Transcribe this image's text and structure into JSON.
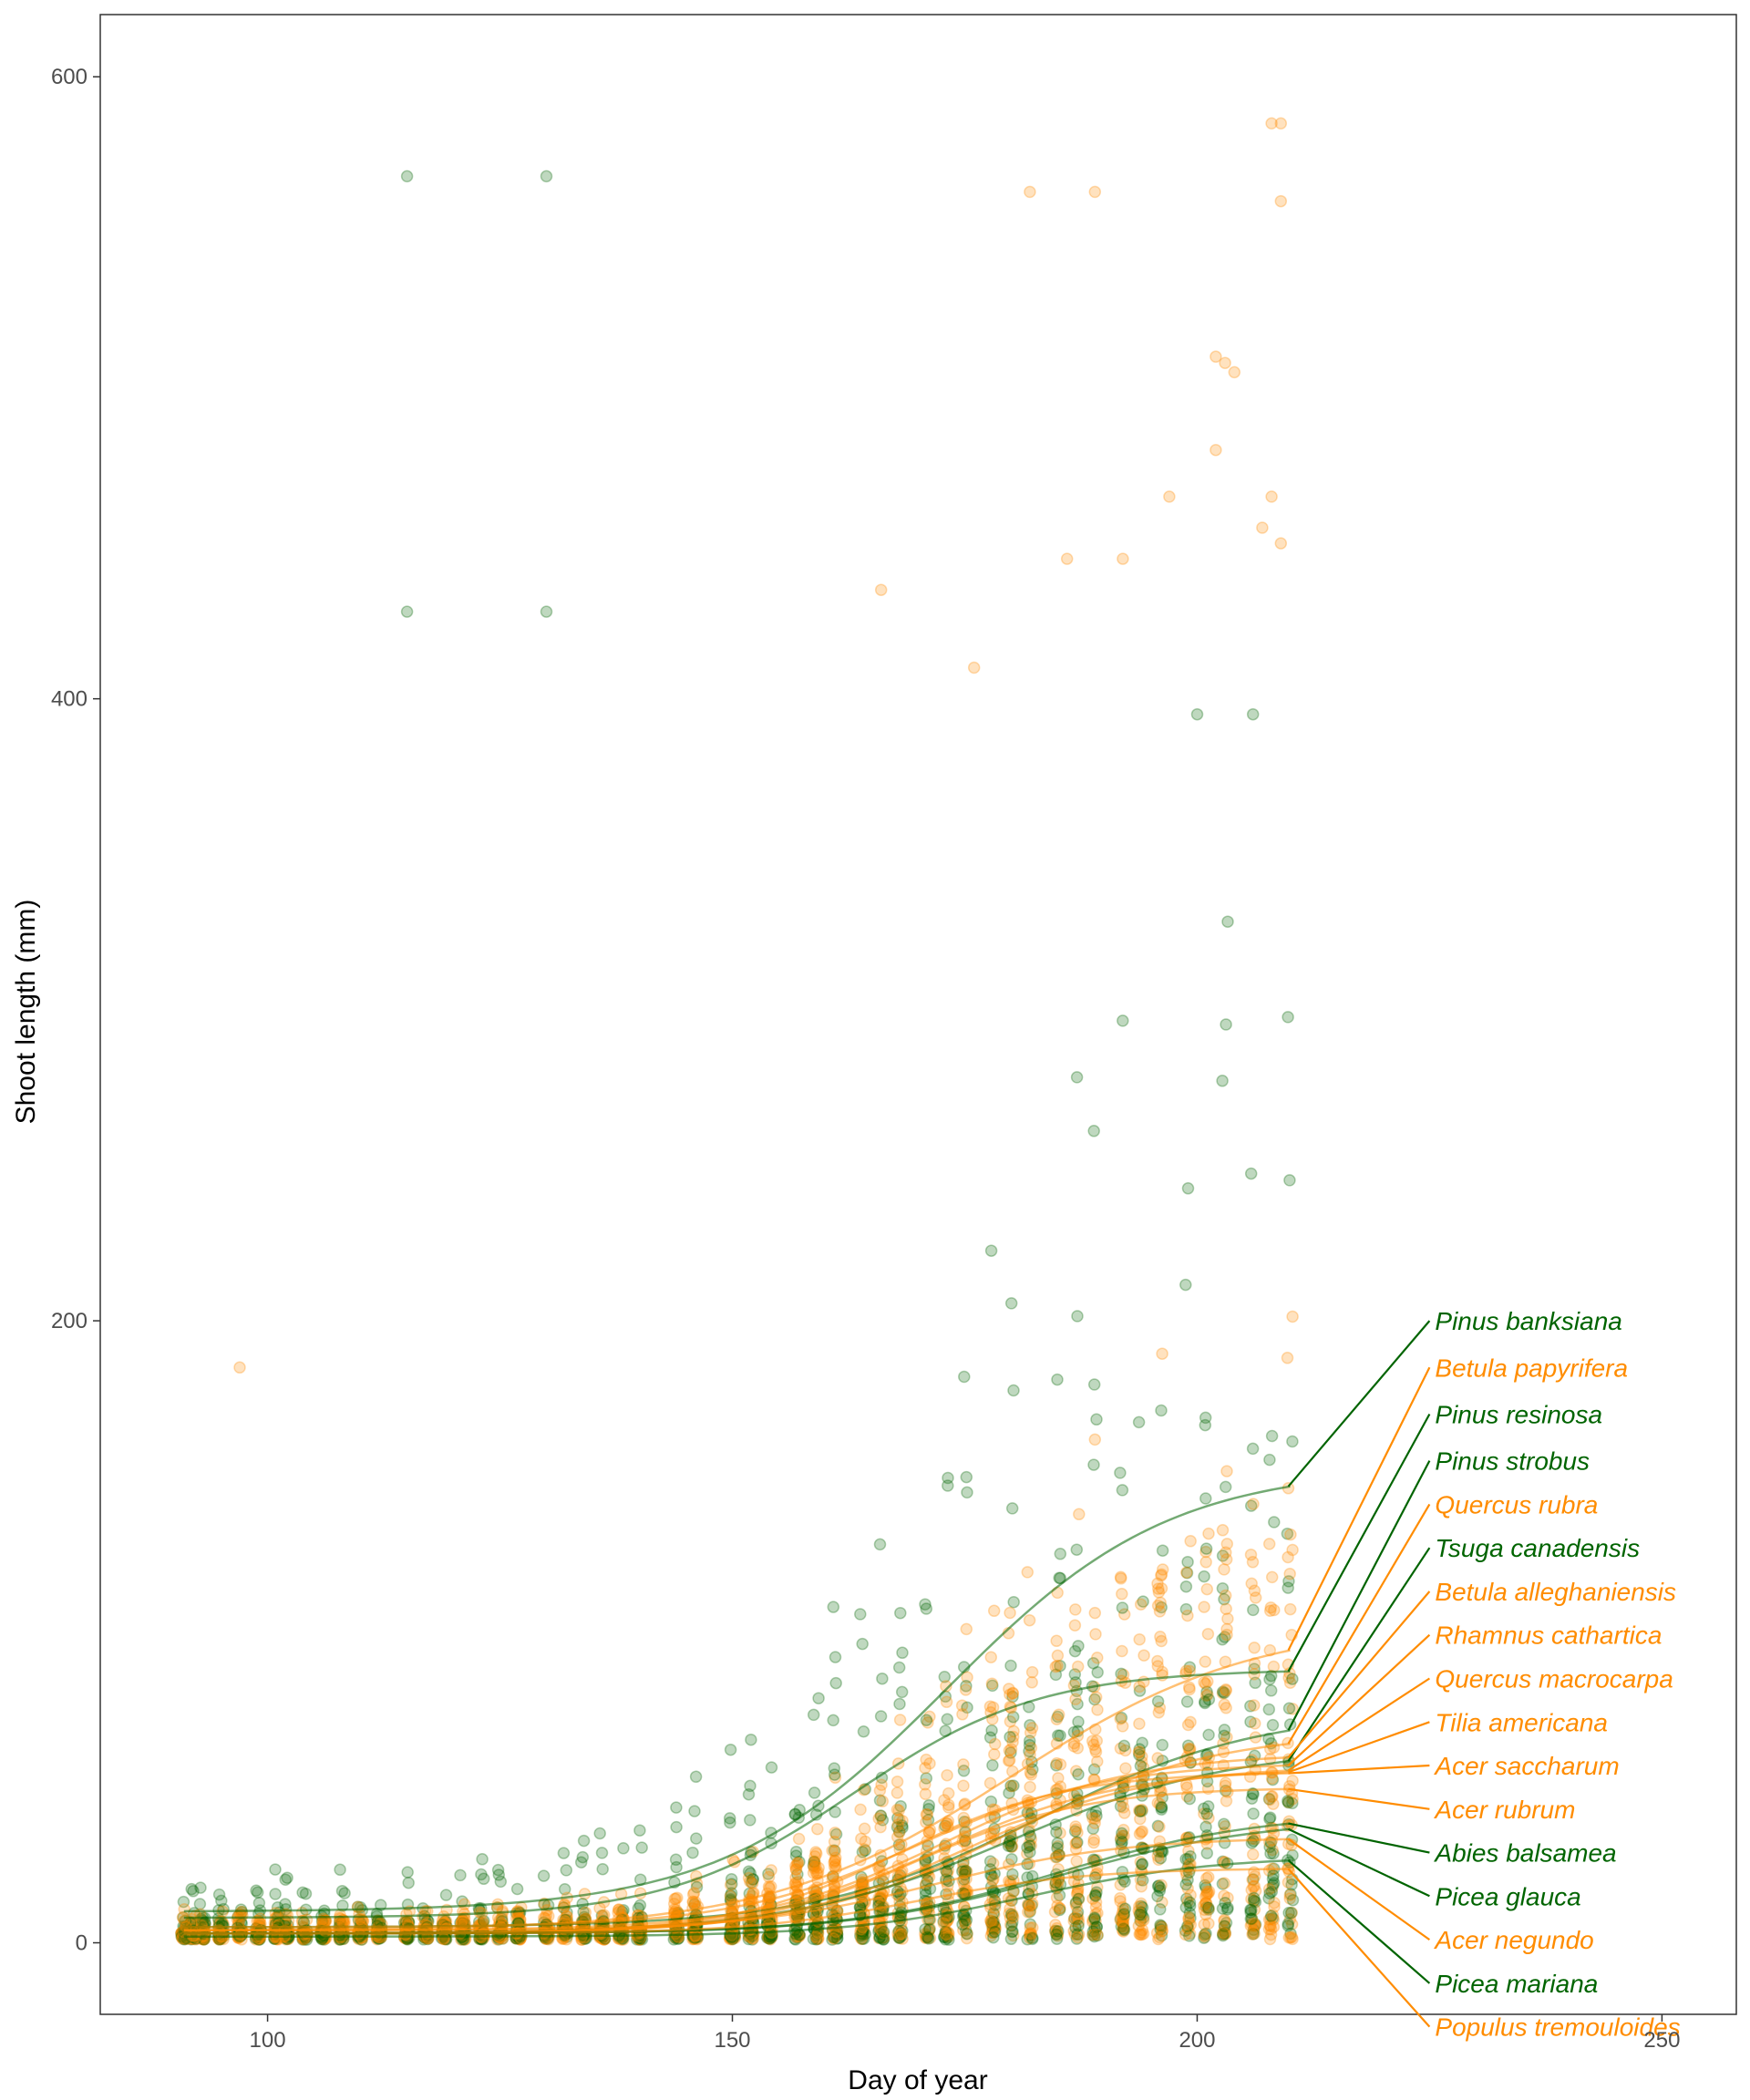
{
  "chart_data": {
    "type": "scatter",
    "title": "",
    "xlabel": "Day of year",
    "ylabel": "Shoot length (mm)",
    "xlim": [
      82,
      258
    ],
    "ylim": [
      -23,
      620
    ],
    "x_ticks": [
      100,
      150,
      200,
      250
    ],
    "y_ticks": [
      0,
      200,
      400,
      600
    ],
    "grid": false,
    "legend": "none",
    "colors": {
      "conifer": "#006400",
      "broadleaf": "#FF8C00"
    },
    "point_alpha": 0.25,
    "sampling_days": [
      91,
      92,
      93,
      95,
      97,
      99,
      101,
      102,
      104,
      106,
      108,
      110,
      112,
      115,
      117,
      119,
      121,
      123,
      125,
      127,
      130,
      132,
      134,
      136,
      138,
      140,
      144,
      146,
      150,
      152,
      154,
      157,
      159,
      161,
      164,
      166,
      168,
      171,
      173,
      175,
      178,
      180,
      182,
      185,
      187,
      189,
      192,
      194,
      196,
      199,
      201,
      203,
      206,
      208,
      210
    ],
    "outliers": [
      {
        "x": 97,
        "y": 185,
        "group": "broadleaf"
      },
      {
        "x": 115,
        "y": 568,
        "group": "conifer"
      },
      {
        "x": 130,
        "y": 568,
        "group": "conifer"
      },
      {
        "x": 115,
        "y": 428,
        "group": "conifer"
      },
      {
        "x": 130,
        "y": 428,
        "group": "conifer"
      },
      {
        "x": 166,
        "y": 435,
        "group": "broadleaf"
      },
      {
        "x": 182,
        "y": 563,
        "group": "broadleaf"
      },
      {
        "x": 189,
        "y": 563,
        "group": "broadleaf"
      },
      {
        "x": 208,
        "y": 585,
        "group": "broadleaf"
      },
      {
        "x": 209,
        "y": 585,
        "group": "broadleaf"
      },
      {
        "x": 209,
        "y": 560,
        "group": "broadleaf"
      },
      {
        "x": 202,
        "y": 510,
        "group": "broadleaf"
      },
      {
        "x": 203,
        "y": 508,
        "group": "broadleaf"
      },
      {
        "x": 204,
        "y": 505,
        "group": "broadleaf"
      },
      {
        "x": 202,
        "y": 480,
        "group": "broadleaf"
      },
      {
        "x": 197,
        "y": 465,
        "group": "broadleaf"
      },
      {
        "x": 208,
        "y": 465,
        "group": "broadleaf"
      },
      {
        "x": 186,
        "y": 445,
        "group": "broadleaf"
      },
      {
        "x": 192,
        "y": 445,
        "group": "broadleaf"
      },
      {
        "x": 207,
        "y": 455,
        "group": "broadleaf"
      },
      {
        "x": 209,
        "y": 450,
        "group": "broadleaf"
      },
      {
        "x": 176,
        "y": 410,
        "group": "broadleaf"
      },
      {
        "x": 200,
        "y": 395,
        "group": "conifer"
      },
      {
        "x": 206,
        "y": 395,
        "group": "conifer"
      }
    ],
    "series": [
      {
        "name": "Pinus banksiana",
        "group": "conifer",
        "start": 10,
        "end": 153,
        "midpoint": 173,
        "scale": 12,
        "label_y": 200
      },
      {
        "name": "Betula papyrifera",
        "group": "broadleaf",
        "start": 4,
        "end": 103,
        "midpoint": 180,
        "scale": 13,
        "label_y": 185
      },
      {
        "name": "Pinus resinosa",
        "group": "conifer",
        "start": 8,
        "end": 88,
        "midpoint": 163,
        "scale": 10,
        "label_y": 170
      },
      {
        "name": "Pinus strobus",
        "group": "conifer",
        "start": 5,
        "end": 75,
        "midpoint": 183,
        "scale": 12,
        "label_y": 155
      },
      {
        "name": "Quercus rubra",
        "group": "broadleaf",
        "start": 3,
        "end": 68,
        "midpoint": 180,
        "scale": 11,
        "label_y": 141
      },
      {
        "name": "Tsuga canadensis",
        "group": "conifer",
        "start": 3,
        "end": 63,
        "midpoint": 180,
        "scale": 12,
        "label_y": 127
      },
      {
        "name": "Betula alleghaniensis",
        "group": "broadleaf",
        "start": 4,
        "end": 61,
        "midpoint": 173,
        "scale": 10,
        "label_y": 113
      },
      {
        "name": "Rhamnus cathartica",
        "group": "broadleaf",
        "start": 5,
        "end": 58,
        "midpoint": 170,
        "scale": 10,
        "label_y": 99
      },
      {
        "name": "Quercus macrocarpa",
        "group": "broadleaf",
        "start": 3,
        "end": 57,
        "midpoint": 175,
        "scale": 10,
        "label_y": 85
      },
      {
        "name": "Tilia americana",
        "group": "broadleaf",
        "start": 3,
        "end": 56,
        "midpoint": 172,
        "scale": 10,
        "label_y": 71
      },
      {
        "name": "Acer saccharum",
        "group": "broadleaf",
        "start": 3,
        "end": 55,
        "midpoint": 168,
        "scale": 9,
        "label_y": 57
      },
      {
        "name": "Acer rubrum",
        "group": "broadleaf",
        "start": 3,
        "end": 50,
        "midpoint": 170,
        "scale": 9,
        "label_y": 43
      },
      {
        "name": "Abies balsamea",
        "group": "conifer",
        "start": 3,
        "end": 42,
        "midpoint": 185,
        "scale": 11,
        "label_y": 29
      },
      {
        "name": "Picea glauca",
        "group": "conifer",
        "start": 3,
        "end": 40,
        "midpoint": 185,
        "scale": 11,
        "label_y": 15
      },
      {
        "name": "Acer negundo",
        "group": "broadleaf",
        "start": 4,
        "end": 34,
        "midpoint": 172,
        "scale": 10,
        "label_y": 1
      },
      {
        "name": "Picea mariana",
        "group": "conifer",
        "start": 2,
        "end": 28,
        "midpoint": 182,
        "scale": 10,
        "label_y": -13
      },
      {
        "name": "Populus tremouloides",
        "group": "broadleaf",
        "start": 3,
        "end": 24,
        "midpoint": 170,
        "scale": 9,
        "label_y": -27
      }
    ]
  }
}
